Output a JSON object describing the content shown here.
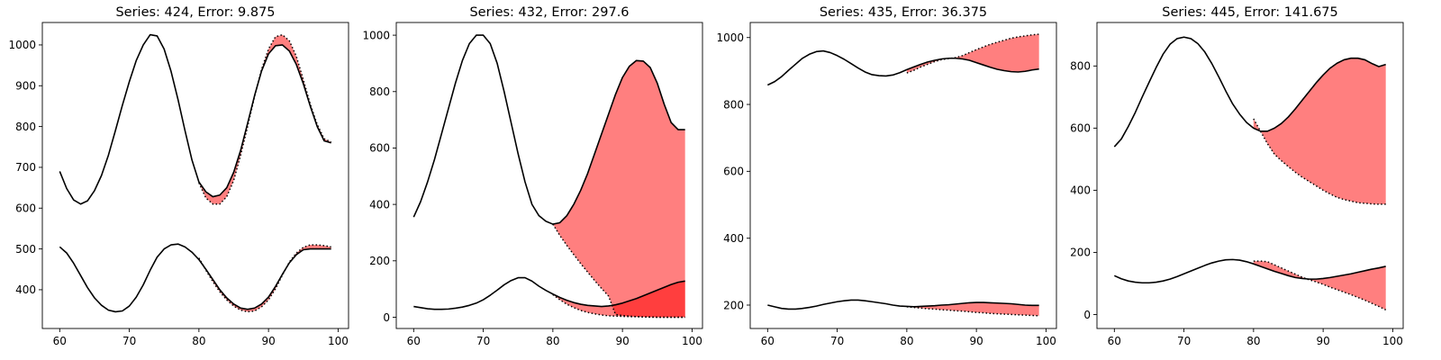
{
  "colors": {
    "band": "#ff7f7f",
    "band_dark": "#ff3e3e",
    "line": "#000000",
    "background": "#ffffff"
  },
  "chart_data": [
    {
      "type": "line",
      "title": "Series: 424, Error: 9.875",
      "xlim": [
        57.5,
        101.5
      ],
      "ylim": [
        305,
        1055
      ],
      "xticks": [
        60,
        70,
        80,
        90,
        100
      ],
      "yticks": [
        400,
        500,
        600,
        700,
        800,
        900,
        1000
      ],
      "grid": false,
      "series": [
        {
          "style": "solid",
          "x": [
            60,
            61,
            62,
            63,
            64,
            65,
            66,
            67,
            68,
            69,
            70,
            71,
            72,
            73,
            74,
            75,
            76,
            77,
            78,
            79,
            80,
            81,
            82,
            83,
            84,
            85,
            86,
            87,
            88,
            89,
            90,
            91,
            92,
            93,
            94,
            95,
            96,
            97,
            98,
            99
          ],
          "values": [
            690,
            648,
            620,
            610,
            618,
            643,
            680,
            730,
            790,
            852,
            910,
            962,
            1000,
            1025,
            1022,
            990,
            935,
            866,
            790,
            718,
            664,
            640,
            628,
            632,
            650,
            688,
            742,
            808,
            876,
            936,
            978,
            998,
            1000,
            985,
            952,
            905,
            850,
            800,
            765,
            760
          ]
        },
        {
          "style": "dotted",
          "x": [
            80,
            81,
            82,
            83,
            84,
            85,
            86,
            87,
            88,
            89,
            90,
            91,
            92,
            93,
            94,
            95,
            96,
            97,
            98,
            99
          ],
          "values": [
            662,
            625,
            610,
            610,
            628,
            668,
            730,
            800,
            874,
            940,
            990,
            1020,
            1025,
            1010,
            972,
            915,
            855,
            805,
            770,
            762
          ]
        },
        {
          "style": "solid",
          "x": [
            60,
            61,
            62,
            63,
            64,
            65,
            66,
            67,
            68,
            69,
            70,
            71,
            72,
            73,
            74,
            75,
            76,
            77,
            78,
            79,
            80,
            81,
            82,
            83,
            84,
            85,
            86,
            87,
            88,
            89,
            90,
            91,
            92,
            93,
            94,
            95,
            96,
            97,
            98,
            99
          ],
          "values": [
            505,
            490,
            465,
            435,
            405,
            380,
            362,
            350,
            346,
            348,
            360,
            382,
            412,
            448,
            480,
            500,
            510,
            512,
            505,
            492,
            474,
            450,
            425,
            400,
            380,
            365,
            355,
            352,
            355,
            365,
            382,
            408,
            438,
            466,
            486,
            498,
            500,
            500,
            500,
            500
          ]
        },
        {
          "style": "dotted",
          "x": [
            80,
            81,
            82,
            83,
            84,
            85,
            86,
            87,
            88,
            89,
            90,
            91,
            92,
            93,
            94,
            95,
            96,
            97,
            98,
            99
          ],
          "values": [
            478,
            448,
            420,
            395,
            375,
            360,
            350,
            346,
            348,
            358,
            375,
            402,
            436,
            468,
            490,
            504,
            510,
            510,
            508,
            505
          ]
        }
      ]
    },
    {
      "type": "line",
      "title": "Series: 432, Error: 297.6",
      "xlim": [
        57.5,
        101.5
      ],
      "ylim": [
        -40,
        1045
      ],
      "xticks": [
        60,
        70,
        80,
        90,
        100
      ],
      "yticks": [
        0,
        200,
        400,
        600,
        800,
        1000
      ],
      "grid": false,
      "series": [
        {
          "style": "solid",
          "x": [
            60,
            61,
            62,
            63,
            64,
            65,
            66,
            67,
            68,
            69,
            70,
            71,
            72,
            73,
            74,
            75,
            76,
            77,
            78,
            79,
            80,
            81,
            82,
            83,
            84,
            85,
            86,
            87,
            88,
            89,
            90,
            91,
            92,
            93,
            94,
            95,
            96,
            97,
            98,
            99
          ],
          "values": [
            355,
            410,
            480,
            560,
            650,
            740,
            830,
            910,
            970,
            1000,
            1000,
            970,
            900,
            800,
            690,
            580,
            480,
            400,
            360,
            340,
            330,
            335,
            360,
            400,
            450,
            510,
            580,
            650,
            720,
            790,
            850,
            890,
            910,
            908,
            885,
            830,
            755,
            690,
            665,
            665
          ]
        },
        {
          "style": "dotted",
          "x": [
            80,
            81,
            82,
            83,
            84,
            85,
            86,
            87,
            88,
            89,
            90,
            91,
            92,
            93,
            94,
            95,
            96,
            97,
            98,
            99
          ],
          "values": [
            330,
            290,
            255,
            222,
            190,
            160,
            130,
            102,
            75,
            10,
            6,
            4,
            2,
            1,
            0,
            0,
            0,
            0,
            0,
            0
          ]
        },
        {
          "style": "solid",
          "x": [
            60,
            61,
            62,
            63,
            64,
            65,
            66,
            67,
            68,
            69,
            70,
            71,
            72,
            73,
            74,
            75,
            76,
            77,
            78,
            79,
            80,
            81,
            82,
            83,
            84,
            85,
            86,
            87,
            88,
            89,
            90,
            91,
            92,
            93,
            94,
            95,
            96,
            97,
            98,
            99
          ],
          "values": [
            38,
            34,
            30,
            28,
            28,
            29,
            32,
            36,
            42,
            50,
            62,
            78,
            96,
            115,
            130,
            140,
            140,
            128,
            110,
            95,
            82,
            70,
            60,
            52,
            46,
            42,
            40,
            38,
            40,
            44,
            50,
            58,
            66,
            76,
            86,
            96,
            106,
            116,
            124,
            128
          ]
        },
        {
          "style": "dotted",
          "x": [
            80,
            81,
            82,
            83,
            84,
            85,
            86,
            87,
            88,
            89,
            90,
            91,
            92,
            93,
            94,
            95,
            96,
            97,
            98,
            99
          ],
          "values": [
            80,
            62,
            46,
            34,
            24,
            17,
            12,
            8,
            5,
            4,
            3,
            2,
            2,
            1,
            1,
            0,
            0,
            0,
            0,
            0
          ]
        }
      ]
    },
    {
      "type": "line",
      "title": "Series: 435, Error: 36.375",
      "xlim": [
        57.5,
        101.5
      ],
      "ylim": [
        130,
        1045
      ],
      "xticks": [
        60,
        70,
        80,
        90,
        100
      ],
      "yticks": [
        200,
        400,
        600,
        800,
        1000
      ],
      "grid": false,
      "series": [
        {
          "style": "solid",
          "x": [
            60,
            61,
            62,
            63,
            64,
            65,
            66,
            67,
            68,
            69,
            70,
            71,
            72,
            73,
            74,
            75,
            76,
            77,
            78,
            79,
            80,
            81,
            82,
            83,
            84,
            85,
            86,
            87,
            88,
            89,
            90,
            91,
            92,
            93,
            94,
            95,
            96,
            97,
            98,
            99
          ],
          "values": [
            858,
            868,
            883,
            902,
            920,
            938,
            950,
            958,
            960,
            955,
            946,
            935,
            922,
            909,
            897,
            889,
            886,
            885,
            888,
            895,
            904,
            912,
            920,
            927,
            932,
            936,
            938,
            938,
            936,
            932,
            925,
            918,
            911,
            905,
            901,
            898,
            897,
            899,
            903,
            906
          ]
        },
        {
          "style": "dotted",
          "x": [
            80,
            81,
            82,
            83,
            84,
            85,
            86,
            87,
            88,
            89,
            90,
            91,
            92,
            93,
            94,
            95,
            96,
            97,
            98,
            99
          ],
          "values": [
            894,
            902,
            912,
            920,
            928,
            934,
            937,
            940,
            946,
            955,
            964,
            972,
            980,
            986,
            992,
            998,
            1002,
            1005,
            1008,
            1010
          ]
        },
        {
          "style": "solid",
          "x": [
            60,
            61,
            62,
            63,
            64,
            65,
            66,
            67,
            68,
            69,
            70,
            71,
            72,
            73,
            74,
            75,
            76,
            77,
            78,
            79,
            80,
            81,
            82,
            83,
            84,
            85,
            86,
            87,
            88,
            89,
            90,
            91,
            92,
            93,
            94,
            95,
            96,
            97,
            98,
            99
          ],
          "values": [
            200,
            195,
            190,
            188,
            188,
            190,
            193,
            197,
            202,
            206,
            210,
            213,
            215,
            215,
            213,
            210,
            207,
            204,
            200,
            197,
            196,
            195,
            196,
            197,
            198,
            200,
            201,
            203,
            205,
            207,
            208,
            208,
            207,
            206,
            205,
            204,
            202,
            200,
            199,
            199
          ]
        },
        {
          "style": "dotted",
          "x": [
            80,
            81,
            82,
            83,
            84,
            85,
            86,
            87,
            88,
            89,
            90,
            91,
            92,
            93,
            94,
            95,
            96,
            97,
            98,
            99
          ],
          "values": [
            195,
            193,
            191,
            189,
            188,
            186,
            185,
            183,
            182,
            180,
            178,
            177,
            175,
            174,
            173,
            172,
            171,
            170,
            169,
            168
          ]
        }
      ]
    },
    {
      "type": "line",
      "title": "Series: 445, Error: 141.675",
      "xlim": [
        57.5,
        101.5
      ],
      "ylim": [
        -45,
        940
      ],
      "xticks": [
        60,
        70,
        80,
        90,
        100
      ],
      "yticks": [
        0,
        200,
        400,
        600,
        800
      ],
      "grid": false,
      "series": [
        {
          "style": "solid",
          "x": [
            60,
            61,
            62,
            63,
            64,
            65,
            66,
            67,
            68,
            69,
            70,
            71,
            72,
            73,
            74,
            75,
            76,
            77,
            78,
            79,
            80,
            81,
            82,
            83,
            84,
            85,
            86,
            87,
            88,
            89,
            90,
            91,
            92,
            93,
            94,
            95,
            96,
            97,
            98,
            99
          ],
          "values": [
            540,
            565,
            605,
            650,
            700,
            748,
            795,
            838,
            870,
            888,
            893,
            888,
            872,
            845,
            808,
            765,
            720,
            678,
            645,
            618,
            600,
            590,
            590,
            600,
            615,
            636,
            662,
            690,
            718,
            746,
            771,
            793,
            809,
            820,
            825,
            825,
            820,
            808,
            798,
            805
          ]
        },
        {
          "style": "dotted",
          "x": [
            80,
            81,
            82,
            83,
            84,
            85,
            86,
            87,
            88,
            89,
            90,
            91,
            92,
            93,
            94,
            95,
            96,
            97,
            98,
            99
          ],
          "values": [
            630,
            590,
            550,
            516,
            495,
            476,
            458,
            442,
            428,
            414,
            400,
            388,
            377,
            370,
            365,
            360,
            358,
            356,
            355,
            355
          ]
        },
        {
          "style": "solid",
          "x": [
            60,
            61,
            62,
            63,
            64,
            65,
            66,
            67,
            68,
            69,
            70,
            71,
            72,
            73,
            74,
            75,
            76,
            77,
            78,
            79,
            80,
            81,
            82,
            83,
            84,
            85,
            86,
            87,
            88,
            89,
            90,
            91,
            92,
            93,
            94,
            95,
            96,
            97,
            98,
            99
          ],
          "values": [
            125,
            115,
            108,
            104,
            102,
            102,
            104,
            108,
            114,
            122,
            131,
            140,
            149,
            158,
            166,
            172,
            176,
            177,
            175,
            170,
            163,
            155,
            147,
            139,
            132,
            125,
            119,
            116,
            114,
            114,
            116,
            119,
            123,
            127,
            131,
            136,
            141,
            146,
            150,
            155
          ]
        },
        {
          "style": "dotted",
          "x": [
            80,
            81,
            82,
            83,
            84,
            85,
            86,
            87,
            88,
            89,
            90,
            91,
            92,
            93,
            94,
            95,
            96,
            97,
            98,
            99
          ],
          "values": [
            172,
            172,
            170,
            160,
            150,
            140,
            130,
            120,
            112,
            105,
            97,
            88,
            80,
            72,
            64,
            55,
            46,
            36,
            26,
            15
          ]
        }
      ]
    }
  ]
}
